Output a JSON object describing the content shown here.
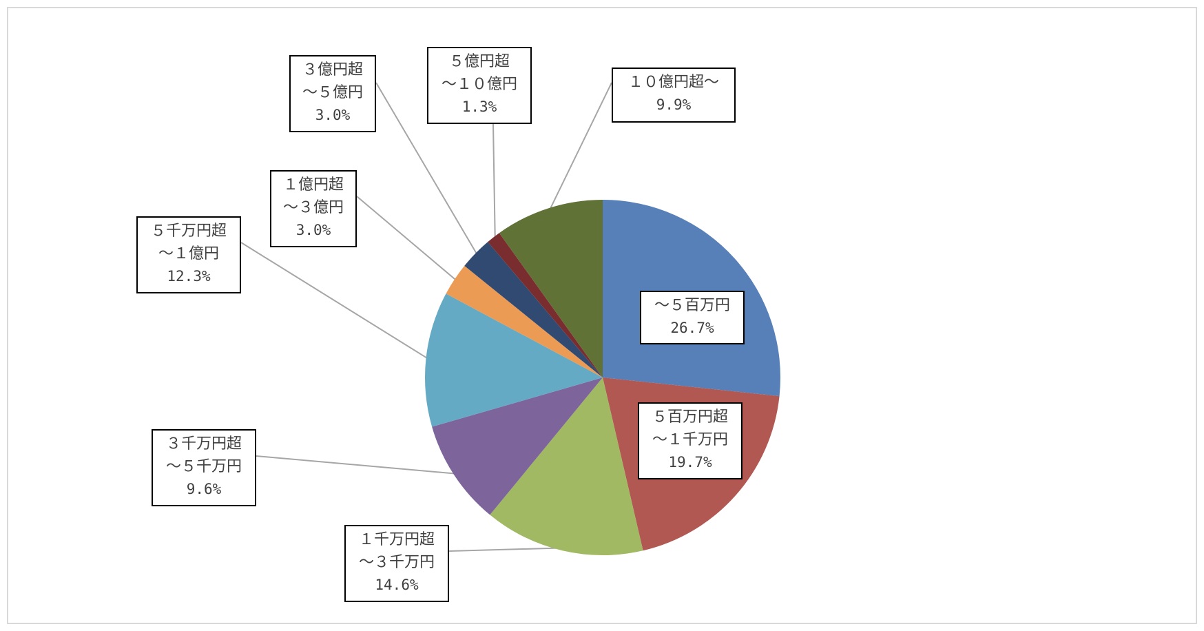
{
  "chart_data": {
    "type": "pie",
    "title": "",
    "start_angle_deg": 0,
    "direction": "clockwise",
    "slices": [
      {
        "label_lines": [
          "～５百万円"
        ],
        "value_text": "26.7%",
        "value": 26.7,
        "color": "#5880b8"
      },
      {
        "label_lines": [
          "５百万円超",
          "～１千万円"
        ],
        "value_text": "19.7%",
        "value": 19.7,
        "color": "#b25852"
      },
      {
        "label_lines": [
          "１千万円超",
          "～３千万円"
        ],
        "value_text": "14.6%",
        "value": 14.6,
        "color": "#a0b962"
      },
      {
        "label_lines": [
          "３千万円超",
          "～５千万円"
        ],
        "value_text": "9.6%",
        "value": 9.6,
        "color": "#7d659c"
      },
      {
        "label_lines": [
          "５千万円超",
          "～１億円"
        ],
        "value_text": "12.3%",
        "value": 12.3,
        "color": "#65aac4"
      },
      {
        "label_lines": [
          "１億円超",
          "～３億円"
        ],
        "value_text": "3.0%",
        "value": 3.0,
        "color": "#ec9b55"
      },
      {
        "label_lines": [
          "３億円超",
          "～５億円"
        ],
        "value_text": "3.0%",
        "value": 3.0,
        "color": "#314a72"
      },
      {
        "label_lines": [
          "５億円超",
          "～１０億円"
        ],
        "value_text": "1.3%",
        "value": 1.3,
        "color": "#7a2d2f"
      },
      {
        "label_lines": [
          "１０億円超～"
        ],
        "value_text": "9.9%",
        "value": 9.9,
        "color": "#617237"
      }
    ]
  }
}
